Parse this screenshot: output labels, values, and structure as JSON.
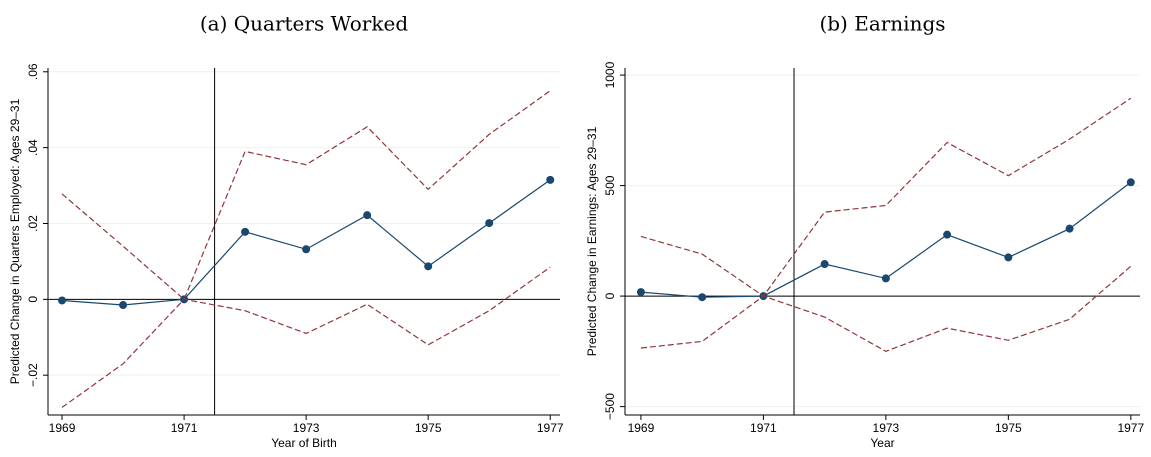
{
  "chart_data": [
    {
      "type": "line",
      "title": "(a) Quarters Worked",
      "x_label": "Year of Birth",
      "y_label": "Predicted Change in Quarters Employed: Ages 29–31",
      "x": [
        1969,
        1970,
        1971,
        1972,
        1973,
        1974,
        1975,
        1976,
        1977
      ],
      "series": [
        {
          "color": "#1a476f",
          "style": "solid",
          "markers": true,
          "values": [
            -0.0003,
            -0.0015,
            0,
            0.0178,
            0.0132,
            0.0222,
            0.0087,
            0.0201,
            0.0315
          ]
        },
        {
          "color": "#90353b",
          "style": "dashed",
          "markers": false,
          "values": [
            0.0278,
            0.014,
            0,
            0.039,
            0.0355,
            0.0455,
            0.029,
            0.0435,
            0.055
          ]
        },
        {
          "color": "#90353b",
          "style": "dashed",
          "markers": false,
          "values": [
            -0.0285,
            -0.017,
            0,
            -0.003,
            -0.009,
            -0.0013,
            -0.012,
            -0.003,
            0.0085
          ]
        }
      ],
      "xlim": [
        1968.77,
        1977.16
      ],
      "xticks": [
        1969,
        1971,
        1973,
        1975,
        1977
      ],
      "ylim": [
        -0.0305,
        0.061
      ],
      "yticks": [
        {
          "value": -0.02,
          "label": "−.02"
        },
        0,
        {
          "value": 0.02,
          "label": ".02"
        },
        {
          "value": 0.04,
          "label": ".04"
        },
        {
          "value": 0.06,
          "label": ".06"
        }
      ],
      "reference_x": 1971.5,
      "reference_y": 0,
      "grid": true
    },
    {
      "type": "line",
      "title": "(b) Earnings",
      "x_label": "Year",
      "y_label": "Predicted Change in Earnings: Ages 29–31",
      "x": [
        1969,
        1970,
        1971,
        1972,
        1973,
        1974,
        1975,
        1976,
        1977
      ],
      "series": [
        {
          "color": "#1a476f",
          "style": "solid",
          "markers": true,
          "values": [
            18,
            -5,
            0,
            145,
            80,
            278,
            175,
            305,
            515
          ]
        },
        {
          "color": "#90353b",
          "style": "dashed",
          "markers": false,
          "values": [
            270,
            190,
            0,
            380,
            410,
            695,
            545,
            710,
            895
          ]
        },
        {
          "color": "#90353b",
          "style": "dashed",
          "markers": false,
          "values": [
            -235,
            -205,
            0,
            -95,
            -250,
            -145,
            -200,
            -105,
            135
          ]
        }
      ],
      "xlim": [
        1968.74,
        1977.15
      ],
      "xticks": [
        1969,
        1971,
        1973,
        1975,
        1977
      ],
      "ylim": [
        -538,
        1032
      ],
      "yticks": [
        {
          "value": -500,
          "label": "−500"
        },
        0,
        {
          "value": 500,
          "label": "500"
        },
        {
          "value": 1000,
          "label": "1000"
        }
      ],
      "reference_x": 1971.5,
      "reference_y": 0,
      "grid": true
    }
  ]
}
